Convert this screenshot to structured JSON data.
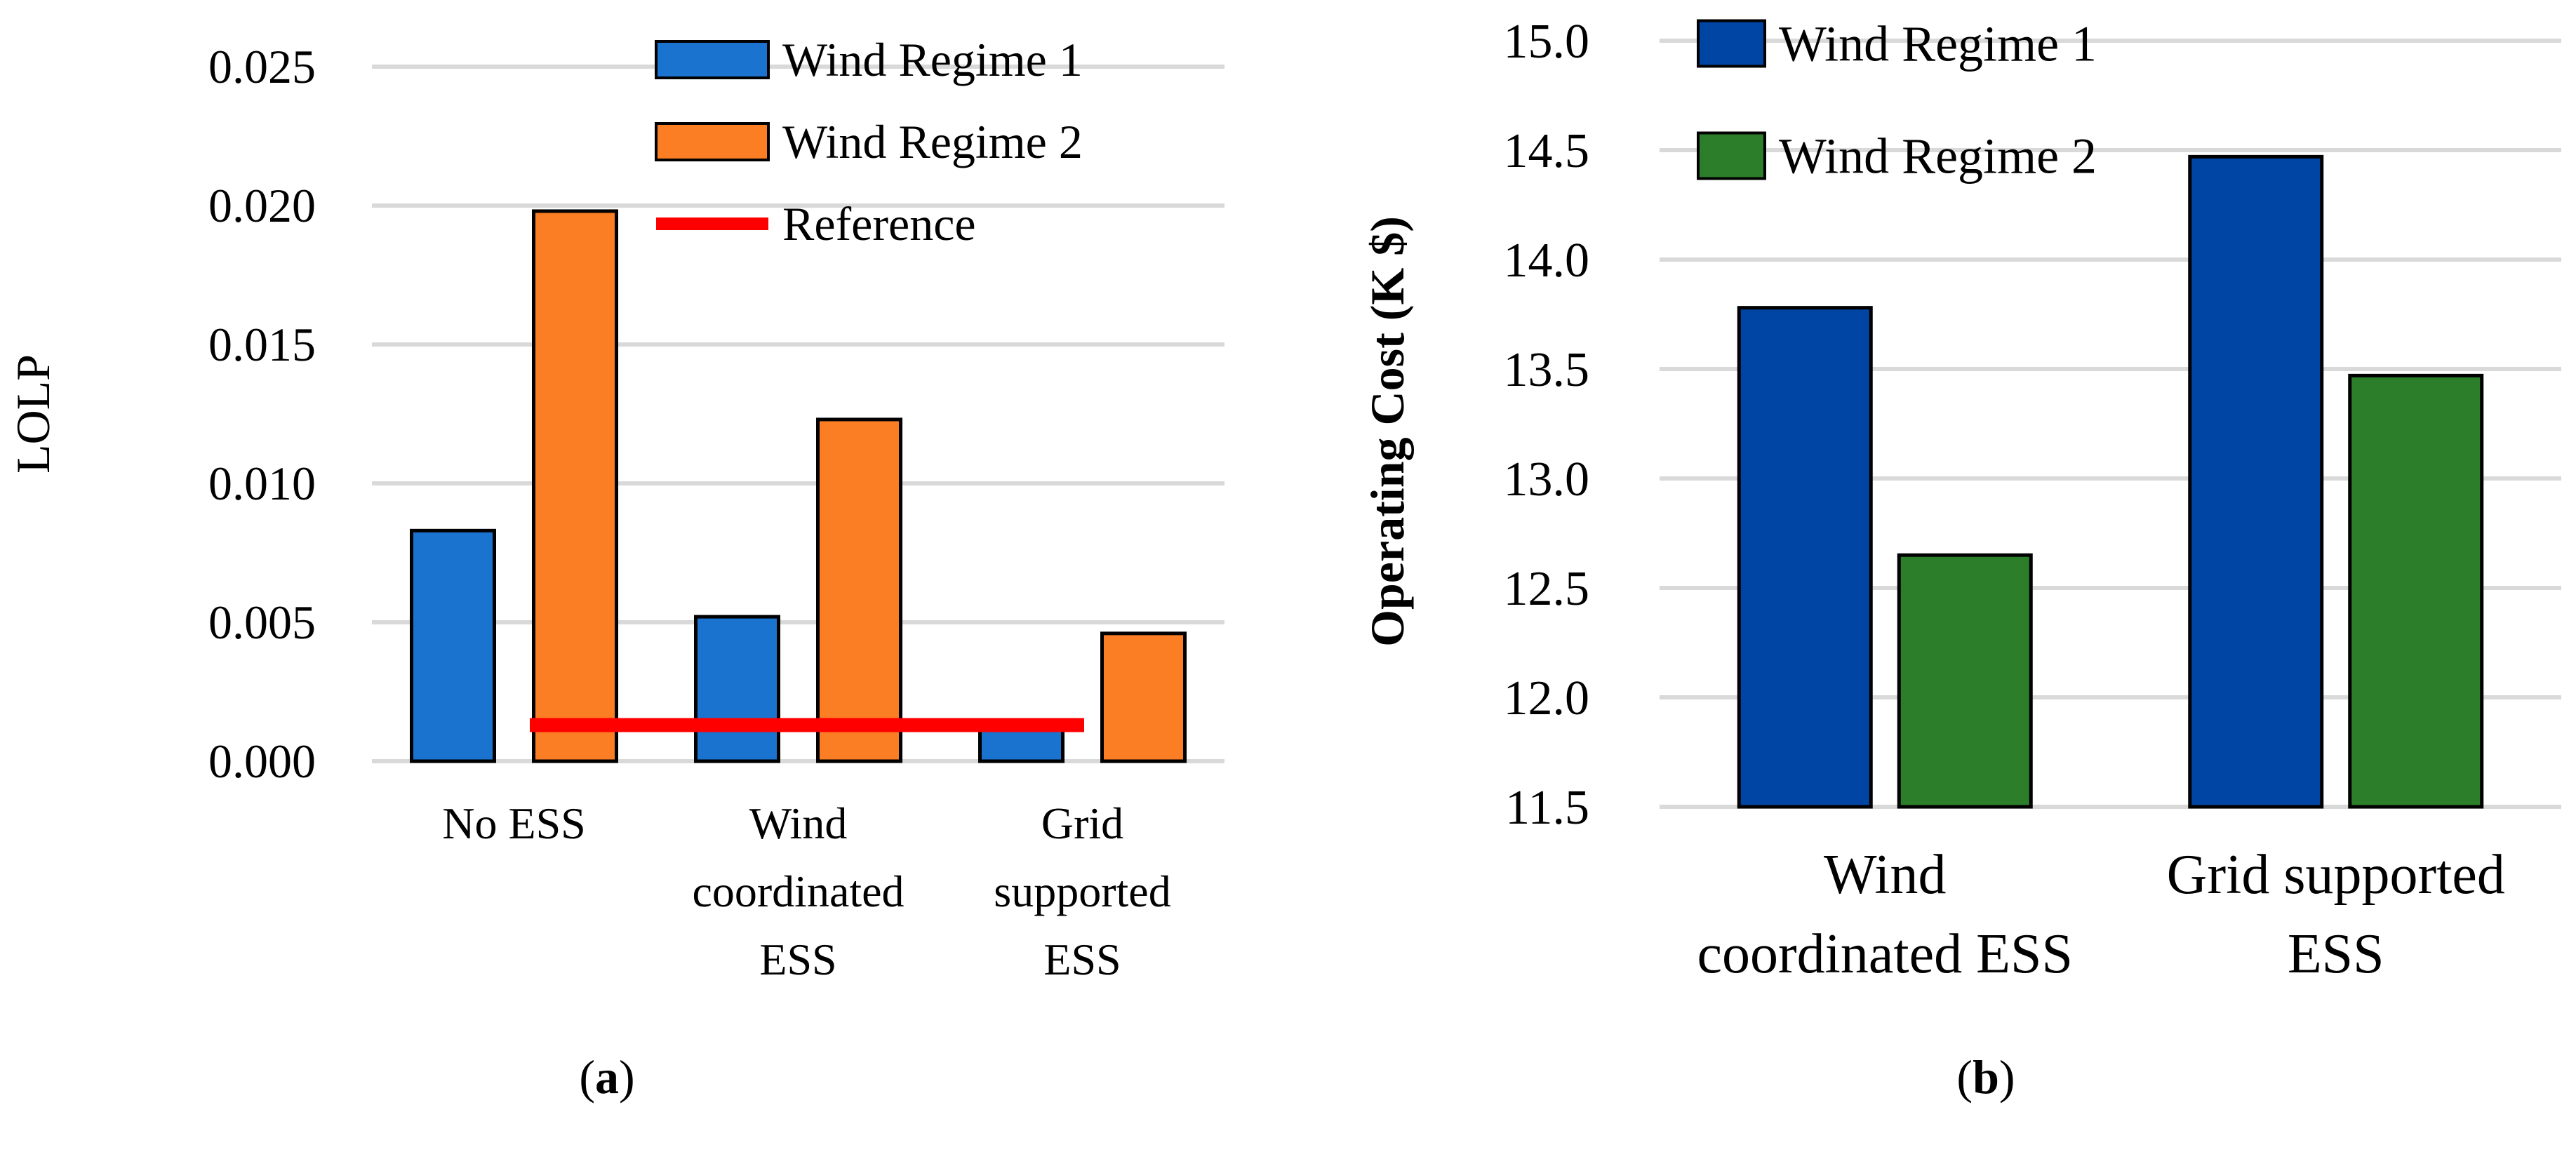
{
  "chart_data": [
    {
      "panel_label": "a",
      "type": "bar",
      "ylabel": "LOLP",
      "categories": [
        [
          "No ESS"
        ],
        [
          "Wind",
          "coordinated",
          "ESS"
        ],
        [
          "Grid",
          "supported",
          "ESS"
        ]
      ],
      "series": [
        {
          "name": "Wind Regime 1",
          "color": "#1a73cf",
          "values": [
            0.0083,
            0.0052,
            0.0013
          ]
        },
        {
          "name": "Wind Regime 2",
          "color": "#fb7d24",
          "values": [
            0.0198,
            0.0123,
            0.0046
          ]
        }
      ],
      "reference": {
        "name": "Reference",
        "value": 0.0013,
        "color": "#ff0000"
      },
      "ylim": [
        0,
        0.025
      ],
      "yticks": [
        "0.000",
        "0.005",
        "0.010",
        "0.015",
        "0.020",
        "0.025"
      ],
      "grid": true,
      "legend_position": "top-right"
    },
    {
      "panel_label": "b",
      "type": "bar",
      "ylabel": "Operating Cost (K $)",
      "categories": [
        [
          "Wind",
          "coordinated ESS"
        ],
        [
          "Grid supported",
          "ESS"
        ]
      ],
      "series": [
        {
          "name": "Wind Regime 1",
          "color": "#0045a4",
          "values": [
            13.78,
            14.47
          ]
        },
        {
          "name": "Wind Regime 2",
          "color": "#2d7e2a",
          "values": [
            12.65,
            13.47
          ]
        }
      ],
      "ylim": [
        11.5,
        15.0
      ],
      "yticks": [
        "11.5",
        "12.0",
        "12.5",
        "13.0",
        "13.5",
        "14.0",
        "14.5",
        "15.0"
      ],
      "grid": true,
      "legend_position": "top-left"
    }
  ]
}
